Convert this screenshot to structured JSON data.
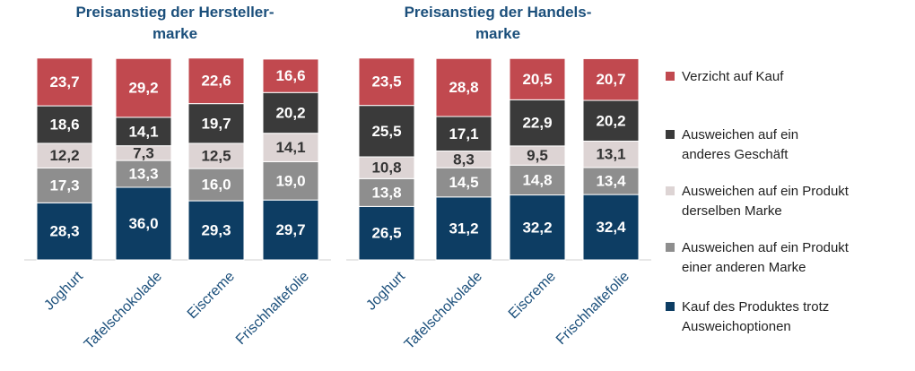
{
  "chart_data": [
    {
      "type": "stacked_bar",
      "title": "Preisanstieg der Hersteller-\nmarke",
      "categories": [
        "Joghurt",
        "Tafelschokolade",
        "Eiscreme",
        "Frischhaltefolie"
      ],
      "ylim": [
        0,
        100
      ],
      "series": [
        {
          "name": "Kauf des Produktes trotz\nAusweichoptionen",
          "color": "#0d3d63",
          "values": [
            28.3,
            36.0,
            29.3,
            29.7
          ],
          "value_labels": [
            "28,3",
            "36,0",
            "29,3",
            "29,7"
          ]
        },
        {
          "name": "Ausweichen auf ein Produkt\neiner anderen Marke",
          "color": "#8e8e8e",
          "values": [
            17.3,
            13.3,
            16.0,
            19.0
          ],
          "value_labels": [
            "17,3",
            "13,3",
            "16,0",
            "19,0"
          ]
        },
        {
          "name": "Ausweichen auf ein Produkt\nderselben Marke",
          "color": "#ddd4d4",
          "values": [
            12.2,
            7.3,
            12.5,
            14.1
          ],
          "value_labels": [
            "12,2",
            "7,3",
            "12,5",
            "14,1"
          ]
        },
        {
          "name": "Ausweichen auf ein\nanderes Geschäft",
          "color": "#3a3a3a",
          "values": [
            18.6,
            14.1,
            19.7,
            20.2
          ],
          "value_labels": [
            "18,6",
            "14,1",
            "19,7",
            "20,2"
          ]
        },
        {
          "name": "Verzicht auf Kauf",
          "color": "#c1494f",
          "values": [
            23.7,
            29.2,
            22.6,
            16.6
          ],
          "value_labels": [
            "23,7",
            "29,2",
            "22,6",
            "16,6"
          ]
        }
      ]
    },
    {
      "type": "stacked_bar",
      "title": "Preisanstieg der Handels-\nmarke",
      "categories": [
        "Joghurt",
        "Tafelschokolade",
        "Eiscreme",
        "Frischhaltefolie"
      ],
      "ylim": [
        0,
        100
      ],
      "series": [
        {
          "values": [
            26.5,
            31.2,
            32.2,
            32.4
          ],
          "value_labels": [
            "26,5",
            "31,2",
            "32,2",
            "32,4"
          ]
        },
        {
          "values": [
            13.8,
            14.5,
            14.8,
            13.4
          ],
          "value_labels": [
            "13,8",
            "14,5",
            "14,8",
            "13,4"
          ]
        },
        {
          "values": [
            10.8,
            8.3,
            9.5,
            13.1
          ],
          "value_labels": [
            "10,8",
            "8,3",
            "9,5",
            "13,1"
          ]
        },
        {
          "values": [
            25.5,
            17.1,
            22.9,
            20.2
          ],
          "value_labels": [
            "25,5",
            "17,1",
            "22,9",
            "20,2"
          ]
        },
        {
          "values": [
            23.5,
            28.8,
            20.5,
            20.7
          ],
          "value_labels": [
            "23,5",
            "28,8",
            "20,5",
            "20,7"
          ]
        }
      ]
    }
  ]
}
